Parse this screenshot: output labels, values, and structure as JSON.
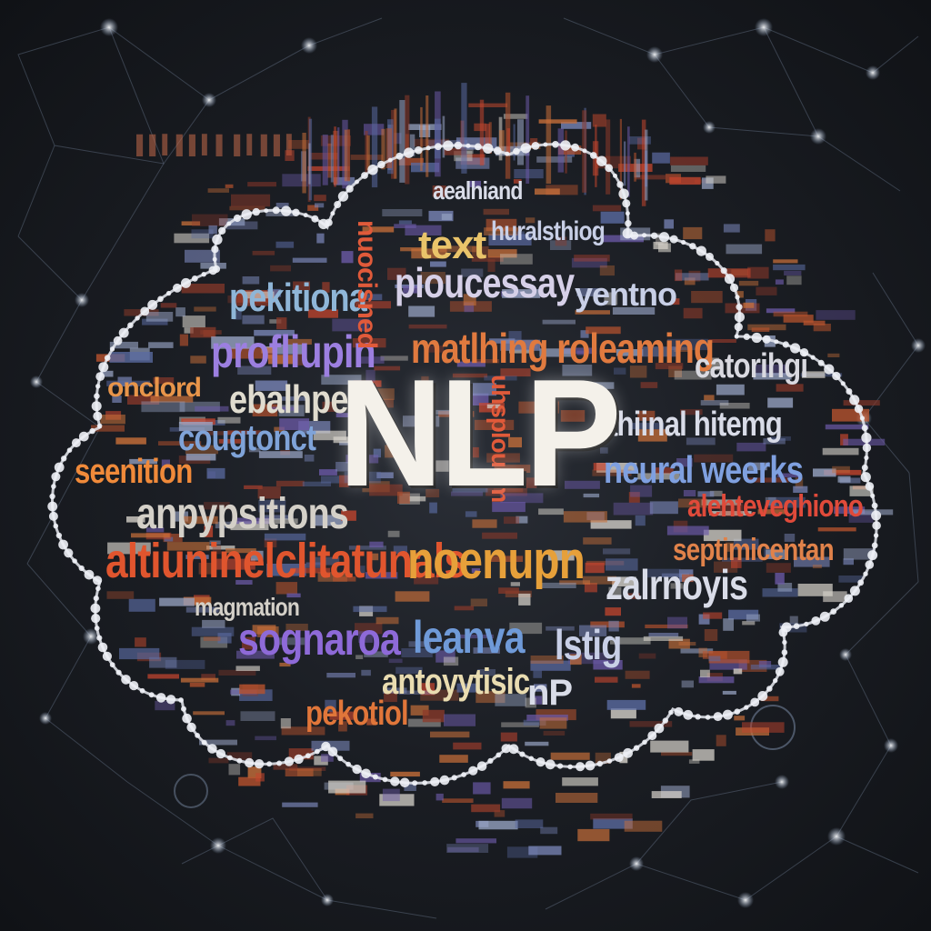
{
  "center": {
    "text": "NLP"
  },
  "words": [
    {
      "text": "text",
      "color": "#e9c46a"
    },
    {
      "text": "pioucessay",
      "color": "#d6d0e8"
    },
    {
      "text": "pekitiona",
      "color": "#8fb6d8"
    },
    {
      "text": "yentno",
      "color": "#c8cfe6"
    },
    {
      "text": "profliupin",
      "color": "#9c7fe0"
    },
    {
      "text": "matlhing roleaming",
      "color": "#e07a3f"
    },
    {
      "text": "catorihgi",
      "color": "#d9d9e0"
    },
    {
      "text": "onclord",
      "color": "#e8954a"
    },
    {
      "text": "ebalhpe",
      "color": "#e0dccf"
    },
    {
      "text": "cougtonct",
      "color": "#7fa3d8"
    },
    {
      "text": "ahiinal hitemg",
      "color": "#d9dce8"
    },
    {
      "text": "seenition",
      "color": "#f08a3a"
    },
    {
      "text": "neural weerks",
      "color": "#7fa0e0"
    },
    {
      "text": "anpypsitions",
      "color": "#d4d0c8"
    },
    {
      "text": "alehteveghiono",
      "color": "#e04a3a"
    },
    {
      "text": "altiuninelclitatunals",
      "color": "#e0552e"
    },
    {
      "text": "noenupn",
      "color": "#e6a03a"
    },
    {
      "text": "septimicentan",
      "color": "#e0824a"
    },
    {
      "text": "zalrnoyis",
      "color": "#d9dce8"
    },
    {
      "text": "magmation",
      "color": "#d4d0c8"
    },
    {
      "text": "sognaroa",
      "color": "#8e6ad8"
    },
    {
      "text": "leanva",
      "color": "#6f9ad8"
    },
    {
      "text": "lstig",
      "color": "#c8cfe6"
    },
    {
      "text": "antoyytisic",
      "color": "#e9dcb0"
    },
    {
      "text": "nP",
      "color": "#d9dce8"
    },
    {
      "text": "pekotiol",
      "color": "#e0763a"
    },
    {
      "text": "aealhiand",
      "color": "#d9dce8"
    },
    {
      "text": "huralsthiog",
      "color": "#c8cfe6"
    },
    {
      "text": "nuocisned",
      "color": "#e05a3a"
    },
    {
      "text": "uhsplouem",
      "color": "#d9dce8"
    }
  ]
}
